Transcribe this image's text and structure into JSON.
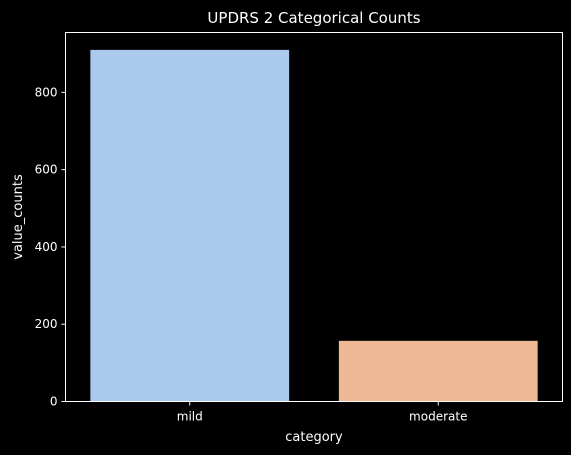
{
  "chart_data": {
    "type": "bar",
    "title": "UPDRS 2 Categorical Counts",
    "xlabel": "category",
    "ylabel": "value_counts",
    "categories": [
      "mild",
      "moderate"
    ],
    "values": [
      910,
      157
    ],
    "colors": [
      "#abc9ed",
      "#f0b995"
    ],
    "ylim": [
      0,
      955
    ],
    "yticks": [
      0,
      200,
      400,
      600,
      800
    ],
    "ytick_labels": [
      "0",
      "200",
      "400",
      "600",
      "800"
    ],
    "grid": false,
    "legend": "none",
    "background": "#000000",
    "axis_color": "#ffffff"
  }
}
